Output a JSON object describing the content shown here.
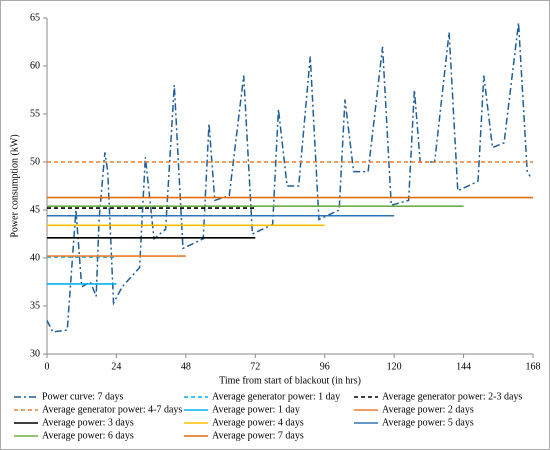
{
  "chart_data": {
    "type": "line",
    "xlabel": "Time from start of blackout (in hrs)",
    "ylabel": "Power consumption (kW)",
    "xlim": [
      0,
      168
    ],
    "xticks": [
      0,
      24,
      48,
      72,
      96,
      120,
      144,
      168
    ],
    "ylim": [
      30,
      65
    ],
    "yticks": [
      30,
      35,
      40,
      45,
      50,
      55,
      60,
      65
    ],
    "series": [
      {
        "name": "Power curve: 7 days",
        "color": "#1f5f96",
        "dash": "dashdot",
        "x": [
          0,
          2,
          7,
          10,
          12,
          15,
          17,
          18,
          20,
          21,
          23,
          26,
          32,
          34,
          37,
          41,
          44,
          47,
          54,
          56,
          58,
          63,
          68,
          71,
          78,
          80,
          83,
          87,
          91,
          94,
          101,
          103,
          106,
          111,
          116,
          119,
          125,
          127,
          129,
          134,
          139,
          142,
          149,
          151,
          154,
          158,
          163,
          166,
          167
        ],
        "values": [
          33.5,
          32.3,
          32.5,
          45,
          37,
          37.5,
          36,
          44,
          51,
          49,
          35.3,
          37,
          39,
          50.5,
          42,
          43,
          58,
          41,
          42,
          54,
          46,
          46.5,
          59,
          42.5,
          43.5,
          55.5,
          47.5,
          47.5,
          61,
          44,
          45,
          56.5,
          49,
          49,
          62,
          45.5,
          46,
          57.5,
          50,
          50,
          63.5,
          47,
          48,
          59,
          51.5,
          52,
          64.5,
          49,
          48.5
        ]
      },
      {
        "name": "Average generator power: 1 day",
        "color": "#00b0f0",
        "dash": "dashed",
        "x": [
          0,
          24
        ],
        "values": [
          40.1,
          40.1
        ]
      },
      {
        "name": "Average generator power: 2-3 days",
        "color": "#000000",
        "dash": "dashed",
        "x": [
          0,
          72
        ],
        "values": [
          45.2,
          45.2
        ]
      },
      {
        "name": "Average generator power: 4-7 days",
        "color": "#ed7d31",
        "dash": "dashed",
        "x": [
          0,
          168
        ],
        "values": [
          50,
          50
        ]
      },
      {
        "name": "Average power: 1 day",
        "color": "#00b0f0",
        "dash": "solid",
        "x": [
          0,
          24
        ],
        "values": [
          37.3,
          37.3
        ]
      },
      {
        "name": "Average power: 2 days",
        "color": "#ed7d31",
        "dash": "solid",
        "x": [
          0,
          48
        ],
        "values": [
          40.2,
          40.2
        ]
      },
      {
        "name": "Average power: 3 days",
        "color": "#000000",
        "dash": "solid",
        "x": [
          0,
          72
        ],
        "values": [
          42.1,
          42.1
        ]
      },
      {
        "name": "Average power: 4 days",
        "color": "#ffc000",
        "dash": "solid",
        "x": [
          0,
          96
        ],
        "values": [
          43.4,
          43.4
        ]
      },
      {
        "name": "Average power: 5 days",
        "color": "#2e75b6",
        "dash": "solid",
        "x": [
          0,
          120
        ],
        "values": [
          44.4,
          44.4
        ]
      },
      {
        "name": "Average power: 6 days",
        "color": "#70ad47",
        "dash": "solid",
        "x": [
          0,
          144
        ],
        "values": [
          45.4,
          45.4
        ]
      },
      {
        "name": "Average power: 7 days",
        "color": "#e46c0a",
        "dash": "solid",
        "x": [
          0,
          168
        ],
        "values": [
          46.3,
          46.3
        ]
      }
    ]
  }
}
